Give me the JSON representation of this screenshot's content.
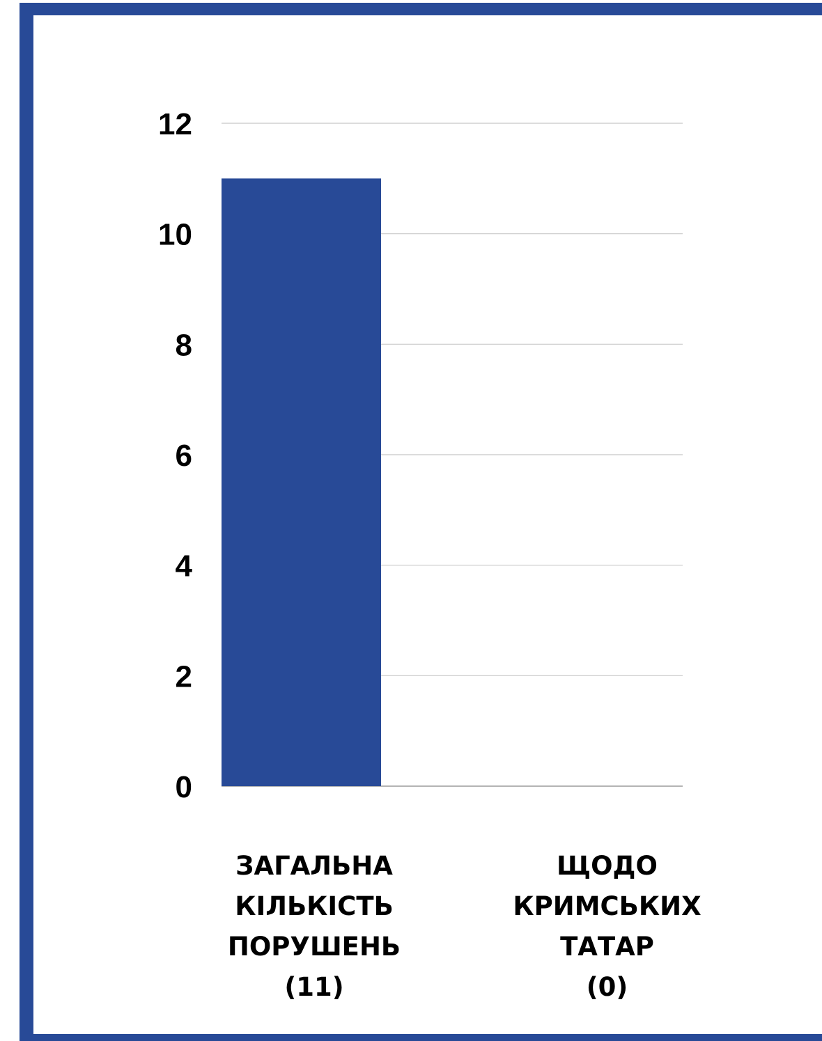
{
  "chart_data": {
    "type": "bar",
    "categories": [
      [
        "ЗАГАЛЬНА",
        "КІЛЬКІСТЬ",
        "ПОРУШЕНЬ",
        "(11)"
      ],
      [
        "ЩОДО",
        "КРИМСЬКИХ",
        "ТАТАР",
        "(0)"
      ]
    ],
    "values": [
      11,
      0
    ],
    "ylim": [
      0,
      12
    ],
    "yticks": [
      "0",
      "2",
      "4",
      "6",
      "8",
      "10",
      "12"
    ],
    "grid": true,
    "legend": "none",
    "title": "",
    "xlabel": "",
    "ylabel": ""
  },
  "colors": {
    "bar": "#284a97",
    "frame": "#284a97",
    "grid": "#c8c8c8",
    "baseline": "#888888"
  }
}
